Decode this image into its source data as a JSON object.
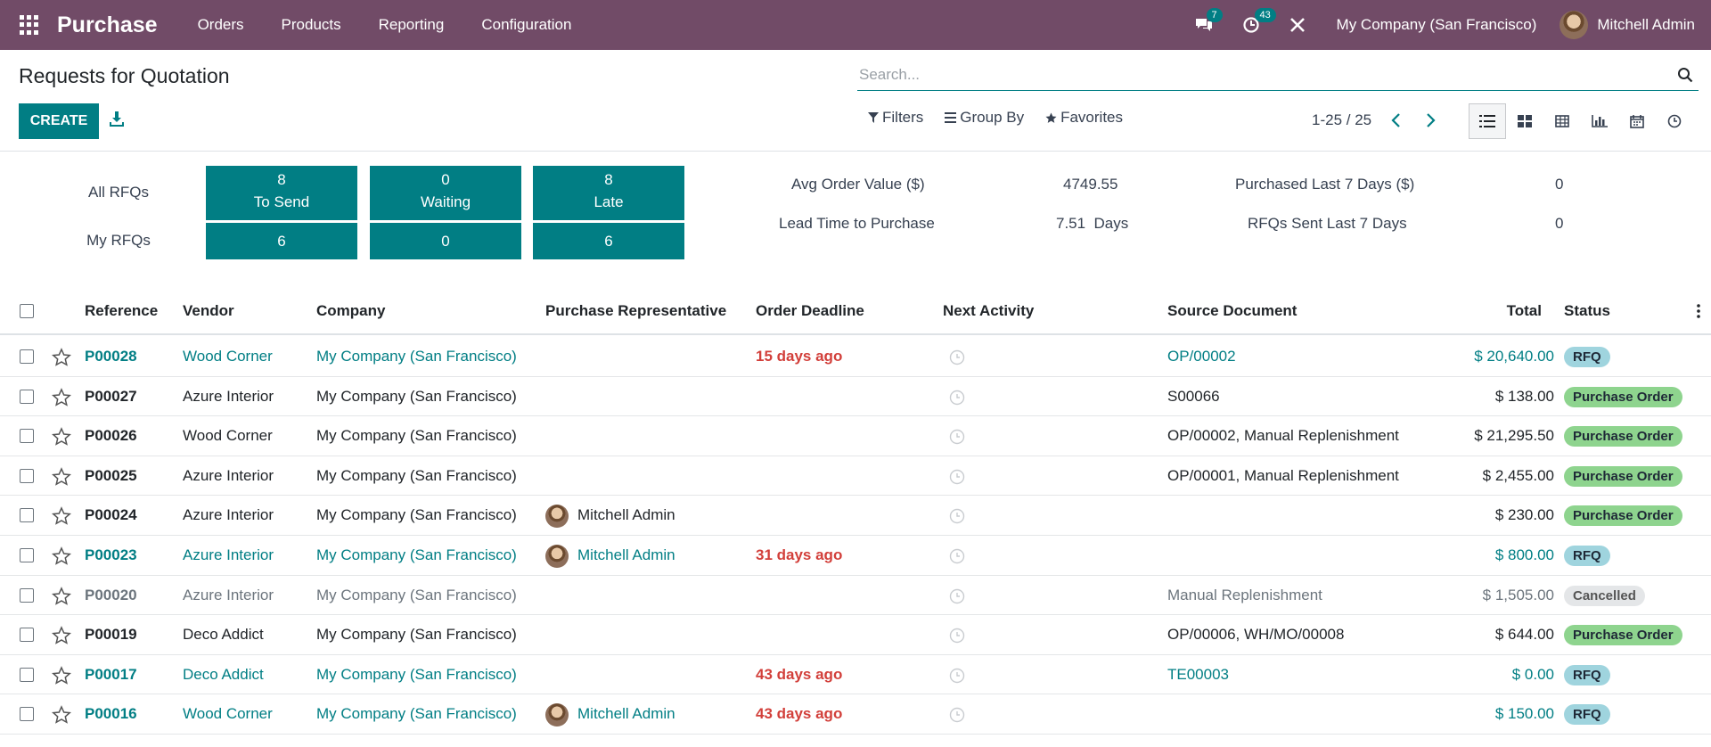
{
  "navbar": {
    "app_name": "Purchase",
    "menu": [
      "Orders",
      "Products",
      "Reporting",
      "Configuration"
    ],
    "messages_count": "7",
    "activities_count": "43",
    "company": "My Company (San Francisco)",
    "user": "Mitchell Admin"
  },
  "control": {
    "title": "Requests for Quotation",
    "create_label": "CREATE",
    "search_placeholder": "Search...",
    "filters_label": "Filters",
    "groupby_label": "Group By",
    "favorites_label": "Favorites",
    "pager": "1-25 / 25"
  },
  "dashboard": {
    "all_rfqs_label": "All RFQs",
    "my_rfqs_label": "My RFQs",
    "to_send": {
      "count": "8",
      "label": "To Send",
      "mine": "6"
    },
    "waiting": {
      "count": "0",
      "label": "Waiting",
      "mine": "0"
    },
    "late": {
      "count": "8",
      "label": "Late",
      "mine": "6"
    },
    "avg_order_label": "Avg Order Value ($)",
    "avg_order_value": "4749.55",
    "lead_time_label": "Lead Time to Purchase",
    "lead_time_value": "7.51  Days",
    "purchased_label": "Purchased Last 7 Days ($)",
    "purchased_value": "0",
    "rfqs_sent_label": "RFQs Sent Last 7 Days",
    "rfqs_sent_value": "0"
  },
  "table": {
    "headers": {
      "reference": "Reference",
      "vendor": "Vendor",
      "company": "Company",
      "rep": "Purchase Representative",
      "deadline": "Order Deadline",
      "activity": "Next Activity",
      "source": "Source Document",
      "total": "Total",
      "status": "Status"
    },
    "rows": [
      {
        "ref": "P00028",
        "vendor": "Wood Corner",
        "company": "My Company (San Francisco)",
        "rep": "",
        "deadline": "15 days ago",
        "source": "OP/00002",
        "total": "$ 20,640.00",
        "status": "RFQ"
      },
      {
        "ref": "P00027",
        "vendor": "Azure Interior",
        "company": "My Company (San Francisco)",
        "rep": "",
        "deadline": "",
        "source": "S00066",
        "total": "$ 138.00",
        "status": "Purchase Order"
      },
      {
        "ref": "P00026",
        "vendor": "Wood Corner",
        "company": "My Company (San Francisco)",
        "rep": "",
        "deadline": "",
        "source": "OP/00002, Manual Replenishment",
        "total": "$ 21,295.50",
        "status": "Purchase Order"
      },
      {
        "ref": "P00025",
        "vendor": "Azure Interior",
        "company": "My Company (San Francisco)",
        "rep": "",
        "deadline": "",
        "source": "OP/00001, Manual Replenishment",
        "total": "$ 2,455.00",
        "status": "Purchase Order"
      },
      {
        "ref": "P00024",
        "vendor": "Azure Interior",
        "company": "My Company (San Francisco)",
        "rep": "Mitchell Admin",
        "deadline": "",
        "source": "",
        "total": "$ 230.00",
        "status": "Purchase Order"
      },
      {
        "ref": "P00023",
        "vendor": "Azure Interior",
        "company": "My Company (San Francisco)",
        "rep": "Mitchell Admin",
        "deadline": "31 days ago",
        "source": "",
        "total": "$ 800.00",
        "status": "RFQ"
      },
      {
        "ref": "P00020",
        "vendor": "Azure Interior",
        "company": "My Company (San Francisco)",
        "rep": "",
        "deadline": "",
        "source": "Manual Replenishment",
        "total": "$ 1,505.00",
        "status": "Cancelled"
      },
      {
        "ref": "P00019",
        "vendor": "Deco Addict",
        "company": "My Company (San Francisco)",
        "rep": "",
        "deadline": "",
        "source": "OP/00006, WH/MO/00008",
        "total": "$ 644.00",
        "status": "Purchase Order"
      },
      {
        "ref": "P00017",
        "vendor": "Deco Addict",
        "company": "My Company (San Francisco)",
        "rep": "",
        "deadline": "43 days ago",
        "source": "TE00003",
        "total": "$ 0.00",
        "status": "RFQ"
      },
      {
        "ref": "P00016",
        "vendor": "Wood Corner",
        "company": "My Company (San Francisco)",
        "rep": "Mitchell Admin",
        "deadline": "43 days ago",
        "source": "",
        "total": "$ 150.00",
        "status": "RFQ"
      }
    ]
  }
}
